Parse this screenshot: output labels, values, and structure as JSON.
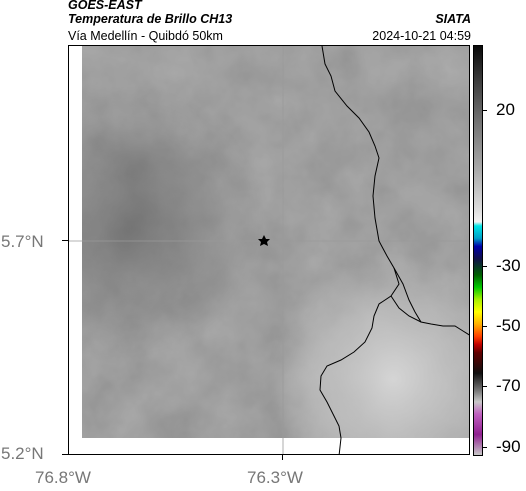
{
  "header": {
    "satellite": "GOES-EAST",
    "product": "Temperatura de Brillo CH13",
    "route": "Vía Medellín - Quibdó 50km",
    "organization": "SIATA",
    "timestamp": "2024-10-21 04:59"
  },
  "axes": {
    "lat_ticks": [
      "5.7°N",
      "5.2°N"
    ],
    "lon_ticks": [
      "76.8°W",
      "76.3°W"
    ]
  },
  "colorbar": {
    "labels": [
      "20",
      "-30",
      "-50",
      "-70",
      "-90"
    ]
  },
  "colors": {
    "cloud_top_gray": "#b4b4b4",
    "background_gray": "#7e7e7e"
  },
  "map": {
    "marker_icon": "star-icon"
  }
}
